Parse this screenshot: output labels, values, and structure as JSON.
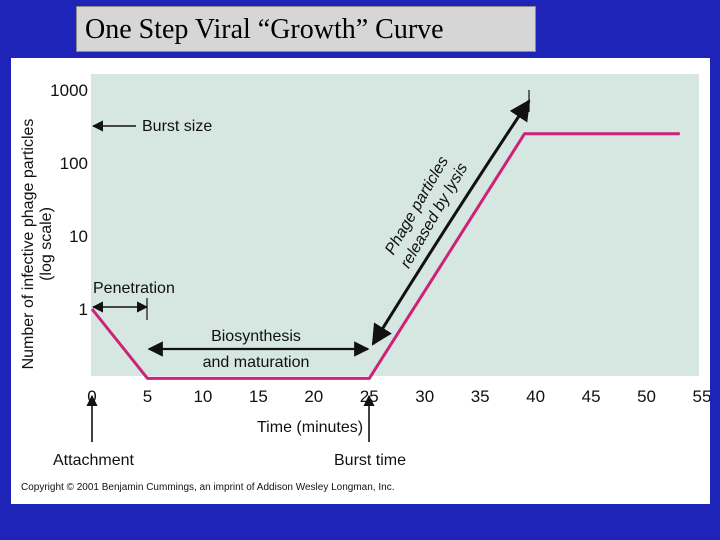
{
  "slide": {
    "title": "One Step Viral “Growth” Curve",
    "background_color": "#1f24b8"
  },
  "chart_data": {
    "type": "line",
    "title": "One Step Viral “Growth” Curve",
    "xlabel": "Time (minutes)",
    "ylabel_line1": "Number of infective phage particles",
    "ylabel_line2": "(log scale)",
    "x_ticks": [
      0,
      5,
      10,
      15,
      20,
      25,
      30,
      35,
      40,
      45,
      50,
      55
    ],
    "y_ticks": [
      1,
      10,
      100,
      1000
    ],
    "y_tick_labels": [
      "1",
      "10",
      "100",
      "1000"
    ],
    "xlim": [
      0,
      55
    ],
    "y_scale": "log",
    "ylim_log10": [
      -1,
      3.2
    ],
    "series": [
      {
        "name": "Phage particles",
        "color": "#cc2277",
        "x": [
          0,
          5,
          25,
          39,
          53
        ],
        "y_log10": [
          0,
          -0.95,
          -0.95,
          2.4,
          2.4
        ]
      }
    ],
    "annotations": {
      "burst_size": "Burst size",
      "penetration": "Penetration",
      "biosynthesis_line1": "Biosynthesis",
      "biosynthesis_line2": "and maturation",
      "release_line1": "Phage particles",
      "release_line2": "released by lysis",
      "attachment": "Attachment",
      "burst_time": "Burst time"
    },
    "plot_background": "#d5e7e0",
    "copyright": "Copyright © 2001 Benjamin Cummings, an imprint of Addison Wesley Longman, Inc."
  }
}
